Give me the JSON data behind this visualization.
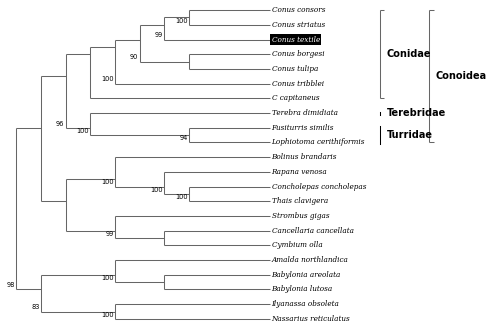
{
  "taxa": [
    "Conus consors",
    "Conus striatus",
    "Conus textile",
    "Conus borgesi",
    "Conus tulipa",
    "Conus tribblei",
    "C capitaneus",
    "Terebra dimidiata",
    "Fusiturris similis",
    "Lophiotoma cerithiformis",
    "Bolinus brandaris",
    "Rapana venosa",
    "Concholepas concholepas",
    "Thais clavigera",
    "Strombus gigas",
    "Cancellaria cancellata",
    "Cymbium olla",
    "Amalda northlandica",
    "Babylonia areolata",
    "Babylonia lutosa",
    "Ilyanassa obsoleta",
    "Nassarius reticulatus"
  ],
  "highlighted_taxon": "Conus textile",
  "line_color": "#666666",
  "label_fontsize": 5.2,
  "bootstrap_fontsize": 4.8
}
